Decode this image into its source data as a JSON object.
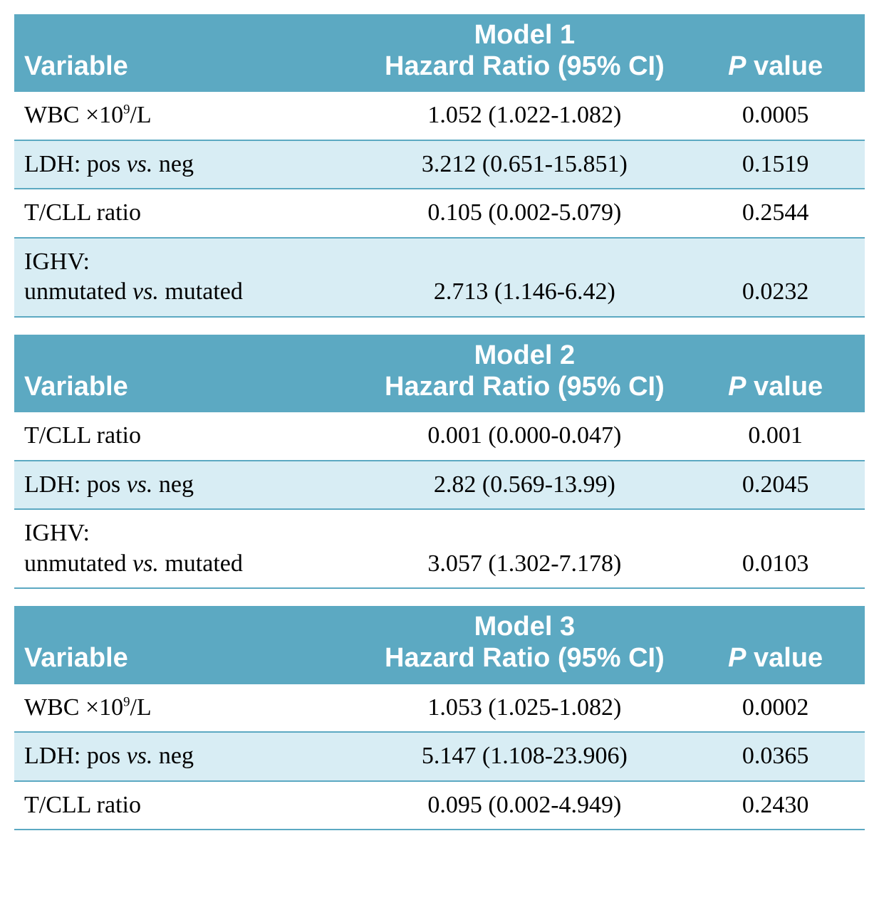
{
  "colors": {
    "header_bg": "#5ca9c2",
    "header_text": "#ffffff",
    "row_alt_bg": "#d8edf4",
    "row_border": "#5ca9c2",
    "body_text": "#000000",
    "page_bg": "#ffffff"
  },
  "column_headers": {
    "variable": "Variable",
    "hazard_ratio_suffix": "Hazard Ratio (95% CI)",
    "p_value_html": "<span class='P'>P</span> value"
  },
  "variable_labels": {
    "wbc": "WBC ×10<sup>9</sup>/L",
    "ldh": "LDH: pos <span class='italic'>vs.</span> neg",
    "tcll": "T/CLL ratio",
    "ighv": "IGHV:<br>unmutated <span class='italic'>vs.</span> mutated"
  },
  "models": [
    {
      "name": "Model 1",
      "rows": [
        {
          "var_key": "wbc",
          "hr": "1.052 (1.022-1.082)",
          "p": "0.0005",
          "alt": false
        },
        {
          "var_key": "ldh",
          "hr": "3.212 (0.651-15.851)",
          "p": "0.1519",
          "alt": true
        },
        {
          "var_key": "tcll",
          "hr": "0.105 (0.002-5.079)",
          "p": "0.2544",
          "alt": false
        },
        {
          "var_key": "ighv",
          "hr": "2.713 (1.146-6.42)",
          "p": "0.0232",
          "alt": true
        }
      ]
    },
    {
      "name": "Model 2",
      "rows": [
        {
          "var_key": "tcll",
          "hr": "0.001 (0.000-0.047)",
          "p": "0.001",
          "alt": false
        },
        {
          "var_key": "ldh",
          "hr": "2.82 (0.569-13.99)",
          "p": "0.2045",
          "alt": true
        },
        {
          "var_key": "ighv",
          "hr": "3.057 (1.302-7.178)",
          "p": "0.0103",
          "alt": false
        }
      ]
    },
    {
      "name": "Model 3",
      "rows": [
        {
          "var_key": "wbc",
          "hr": "1.053 (1.025-1.082)",
          "p": "0.0002",
          "alt": false
        },
        {
          "var_key": "ldh",
          "hr": "5.147 (1.108-23.906)",
          "p": "0.0365",
          "alt": true
        },
        {
          "var_key": "tcll",
          "hr": "0.095 (0.002-4.949)",
          "p": "0.2430",
          "alt": false
        }
      ]
    }
  ]
}
